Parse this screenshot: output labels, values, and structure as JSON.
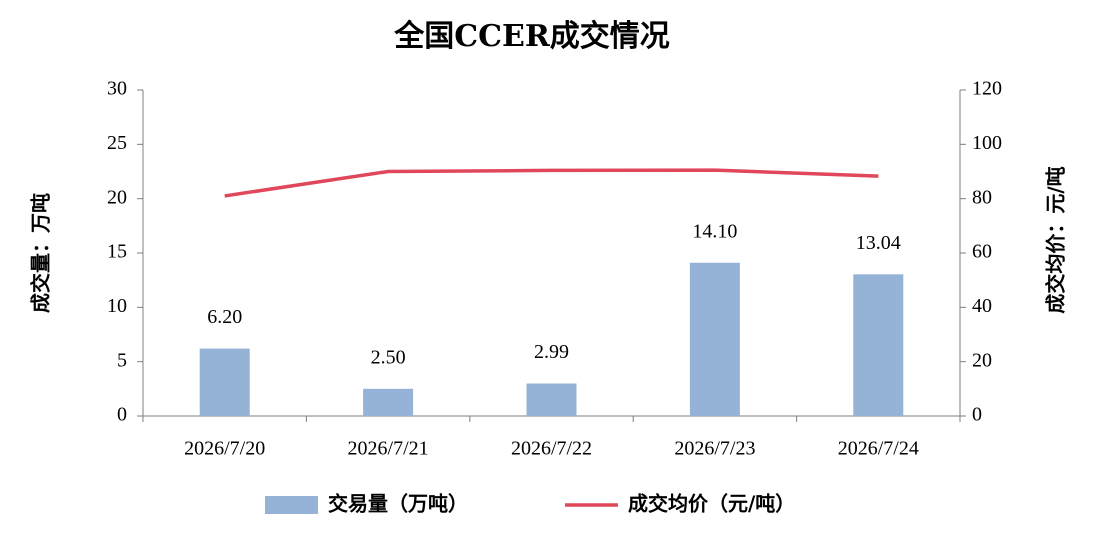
{
  "chart_data": {
    "type": "bar",
    "title": "全国CCER成交情况",
    "ylabel": "成交量：万吨",
    "y2label": "成交均价：元/吨",
    "categories": [
      "2026/7/20",
      "2026/7/21",
      "2026/7/22",
      "2026/7/23",
      "2026/7/24"
    ],
    "series": [
      {
        "name": "交易量（万吨）",
        "type": "bar",
        "color": "#95b3d7",
        "values": [
          6.2,
          2.5,
          2.99,
          14.1,
          13.04
        ],
        "value_labels": [
          "6.20",
          "2.50",
          "2.99",
          "14.10",
          "13.04"
        ]
      },
      {
        "name": "成交均价（元/吨）",
        "type": "line",
        "axis": "y2",
        "color": "#e0475b",
        "values": [
          81,
          90,
          90.4,
          90.5,
          88.3
        ]
      }
    ],
    "ylim": [
      0,
      30
    ],
    "yticks": [
      0,
      5,
      10,
      15,
      20,
      25,
      30
    ],
    "y2lim": [
      0,
      120
    ],
    "y2ticks": [
      0,
      20,
      40,
      60,
      80,
      100,
      120
    ]
  }
}
